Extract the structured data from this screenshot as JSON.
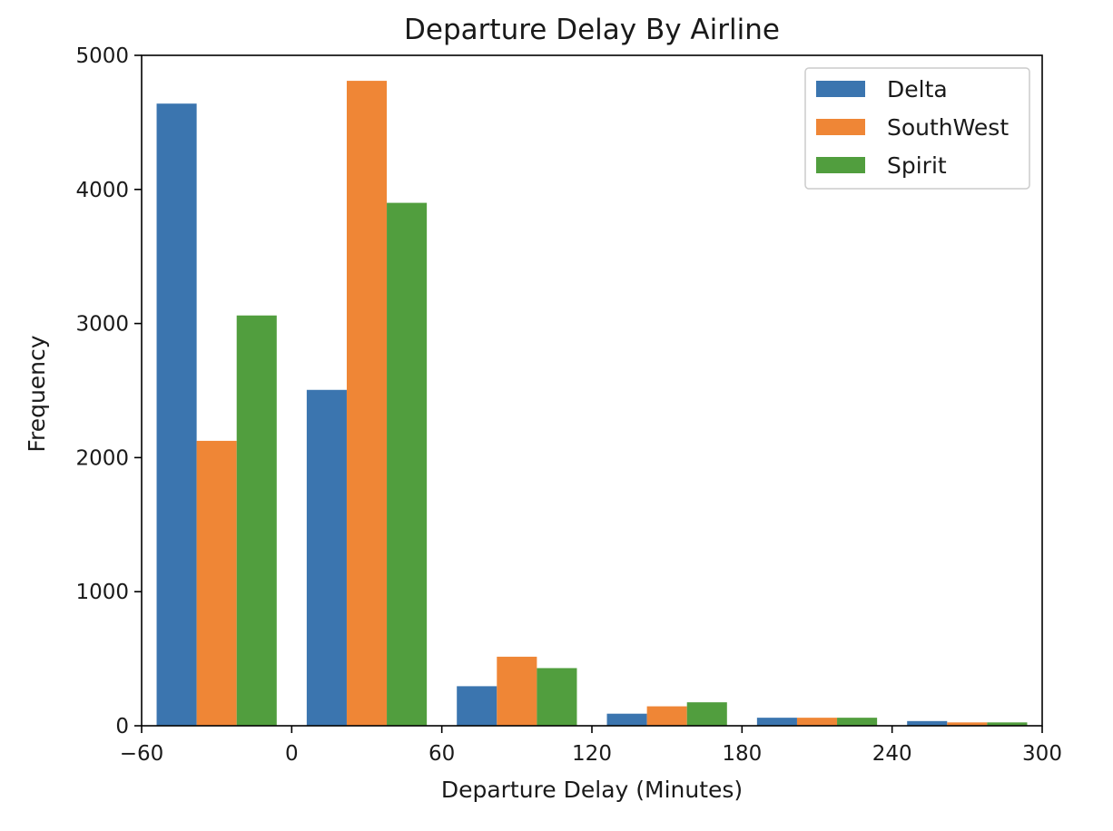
{
  "chart_data": {
    "type": "bar",
    "title": "Departure Delay By Airline",
    "xlabel": "Departure Delay (Minutes)",
    "ylabel": "Frequency",
    "xlim": [
      -60,
      300
    ],
    "ylim": [
      0,
      5000
    ],
    "xticks": [
      -60,
      0,
      60,
      120,
      180,
      240,
      300
    ],
    "xtick_labels": [
      "−60",
      "0",
      "60",
      "120",
      "180",
      "240",
      "300"
    ],
    "yticks": [
      0,
      1000,
      2000,
      3000,
      4000,
      5000
    ],
    "ytick_labels": [
      "0",
      "1000",
      "2000",
      "3000",
      "4000",
      "5000"
    ],
    "bins": [
      [
        -60,
        0
      ],
      [
        0,
        60
      ],
      [
        60,
        120
      ],
      [
        120,
        180
      ],
      [
        180,
        240
      ],
      [
        240,
        300
      ]
    ],
    "series": [
      {
        "name": "Delta",
        "color": "#3b75af",
        "values": [
          4640,
          2505,
          295,
          90,
          60,
          35
        ]
      },
      {
        "name": "SouthWest",
        "color": "#ef8636",
        "values": [
          2125,
          4810,
          515,
          145,
          60,
          25
        ]
      },
      {
        "name": "Spirit",
        "color": "#519e3e",
        "values": [
          3060,
          3900,
          430,
          175,
          60,
          25
        ]
      }
    ],
    "grid": false,
    "legend_position": "top-right"
  }
}
